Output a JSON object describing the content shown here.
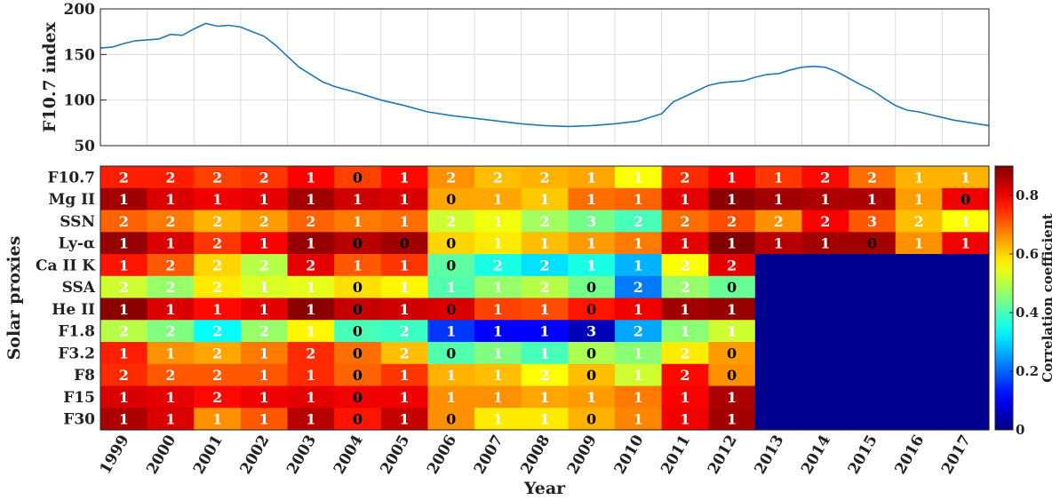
{
  "chart_data": [
    {
      "type": "line",
      "ylabel": "F10.7 index",
      "ylim": [
        50,
        200
      ],
      "yticks": [
        50,
        100,
        150,
        200
      ],
      "xlim": [
        1999,
        2018
      ],
      "grid": true,
      "color": "#1f77b4",
      "series": [
        {
          "x": [
            1999.0,
            1999.25,
            1999.5,
            1999.75,
            2000.0,
            2000.25,
            2000.5,
            2000.75,
            2001.0,
            2001.25,
            2001.5,
            2001.75,
            2002.0,
            2002.25,
            2002.5,
            2002.75,
            2003.0,
            2003.25,
            2003.5,
            2003.75,
            2004.0,
            2004.5,
            2005.0,
            2005.5,
            2006.0,
            2006.5,
            2007.0,
            2007.5,
            2008.0,
            2008.5,
            2009.0,
            2009.5,
            2010.0,
            2010.5,
            2011.0,
            2011.25,
            2011.5,
            2011.75,
            2012.0,
            2012.25,
            2012.5,
            2012.75,
            2013.0,
            2013.25,
            2013.5,
            2013.75,
            2014.0,
            2014.25,
            2014.5,
            2014.75,
            2015.0,
            2015.25,
            2015.5,
            2015.75,
            2016.0,
            2016.25,
            2016.5,
            2016.75,
            2017.0,
            2017.25,
            2017.5,
            2017.75,
            2018.0
          ],
          "y": [
            157,
            158,
            162,
            165,
            166,
            167,
            172,
            171,
            178,
            184,
            181,
            182,
            180,
            175,
            170,
            160,
            148,
            136,
            128,
            120,
            115,
            108,
            100,
            94,
            87,
            83,
            80,
            77,
            74,
            72,
            71,
            72,
            74,
            77,
            85,
            98,
            104,
            110,
            116,
            119,
            120,
            121,
            125,
            128,
            129,
            133,
            136,
            137,
            136,
            131,
            124,
            117,
            111,
            102,
            94,
            89,
            87,
            84,
            81,
            78,
            76,
            74,
            72
          ]
        }
      ]
    },
    {
      "type": "heatmap",
      "xlabel": "Year",
      "ylabel": "Solar proxies",
      "x": [
        "1999",
        "2000",
        "2001",
        "2002",
        "2003",
        "2004",
        "2005",
        "2006",
        "2007",
        "2008",
        "2009",
        "2010",
        "2011",
        "2012",
        "2013",
        "2014",
        "2015",
        "2016",
        "2017"
      ],
      "y": [
        "F10.7",
        "Mg II",
        "SSN",
        "Ly-α",
        "Ca II K",
        "SSA",
        "He II",
        "F1.8",
        "F3.2",
        "F8",
        "F15",
        "F30"
      ],
      "colorbar": {
        "label": "Correlation coefficient",
        "range": [
          0,
          0.9
        ],
        "ticks": [
          0,
          0.2,
          0.4,
          0.6,
          0.8
        ]
      },
      "colormap": "jet",
      "missing_color": "#00008f",
      "values": [
        [
          0.76,
          0.76,
          0.73,
          0.74,
          0.79,
          0.73,
          0.78,
          0.66,
          0.62,
          0.63,
          0.64,
          0.56,
          0.75,
          0.79,
          0.74,
          0.78,
          0.69,
          0.63,
          0.63
        ],
        [
          0.87,
          0.82,
          0.8,
          0.81,
          0.87,
          0.83,
          0.82,
          0.64,
          0.64,
          0.61,
          0.69,
          0.7,
          0.81,
          0.89,
          0.87,
          0.86,
          0.86,
          0.65,
          0.8
        ],
        [
          0.7,
          0.68,
          0.63,
          0.65,
          0.7,
          0.68,
          0.69,
          0.52,
          0.55,
          0.48,
          0.44,
          0.4,
          0.69,
          0.72,
          0.66,
          0.79,
          0.71,
          0.62,
          0.56
        ],
        [
          0.88,
          0.82,
          0.74,
          0.79,
          0.88,
          0.85,
          0.87,
          0.6,
          0.58,
          0.62,
          0.65,
          0.68,
          0.81,
          0.9,
          0.85,
          0.87,
          0.87,
          0.66,
          0.8
        ],
        [
          0.77,
          0.71,
          0.6,
          0.5,
          0.81,
          0.71,
          0.74,
          0.42,
          0.36,
          0.31,
          0.36,
          0.27,
          0.56,
          0.81,
          null,
          null,
          null,
          null,
          null
        ],
        [
          0.52,
          0.47,
          0.58,
          0.53,
          0.54,
          0.59,
          0.57,
          0.41,
          0.47,
          0.5,
          0.44,
          0.22,
          0.47,
          0.43,
          null,
          null,
          null,
          null,
          null
        ],
        [
          0.89,
          0.82,
          0.78,
          0.81,
          0.89,
          0.84,
          0.83,
          0.82,
          0.73,
          0.72,
          0.77,
          0.8,
          0.87,
          0.88,
          null,
          null,
          null,
          null,
          null
        ],
        [
          0.5,
          0.45,
          0.34,
          0.47,
          0.57,
          0.4,
          0.39,
          0.16,
          0.11,
          0.11,
          0.05,
          0.26,
          0.46,
          0.52,
          null,
          null,
          null,
          null,
          null
        ],
        [
          0.76,
          0.66,
          0.64,
          0.68,
          0.75,
          0.69,
          0.62,
          0.41,
          0.45,
          0.4,
          0.49,
          0.46,
          0.58,
          0.65,
          null,
          null,
          null,
          null,
          null
        ],
        [
          0.75,
          0.71,
          0.71,
          0.71,
          0.75,
          0.7,
          0.74,
          0.63,
          0.62,
          0.56,
          0.62,
          0.52,
          0.78,
          0.66,
          null,
          null,
          null,
          null,
          null
        ],
        [
          0.82,
          0.81,
          0.78,
          0.8,
          0.81,
          0.8,
          0.8,
          0.66,
          0.66,
          0.64,
          0.65,
          0.68,
          0.79,
          0.86,
          null,
          null,
          null,
          null,
          null
        ],
        [
          0.86,
          0.82,
          0.66,
          0.71,
          0.85,
          0.77,
          0.84,
          0.66,
          0.58,
          0.58,
          0.63,
          0.67,
          0.8,
          0.87,
          null,
          null,
          null,
          null,
          null
        ]
      ],
      "labels": [
        [
          "2",
          "2",
          "2",
          "2",
          "1",
          "0",
          "1",
          "2",
          "2",
          "2",
          "1",
          "1",
          "2",
          "1",
          "1",
          "2",
          "2",
          "1",
          "1"
        ],
        [
          "1",
          "1",
          "1",
          "1",
          "1",
          "1",
          "1",
          "0",
          "1",
          "1",
          "1",
          "1",
          "1",
          "1",
          "1",
          "1",
          "1",
          "1",
          "0"
        ],
        [
          "2",
          "2",
          "2",
          "2",
          "2",
          "1",
          "1",
          "2",
          "1",
          "2",
          "3",
          "2",
          "2",
          "2",
          "2",
          "2",
          "3",
          "2",
          "1"
        ],
        [
          "1",
          "1",
          "2",
          "1",
          "1",
          "0",
          "0",
          "0",
          "1",
          "1",
          "1",
          "1",
          "1",
          "1",
          "1",
          "1",
          "0",
          "1",
          "1"
        ],
        [
          "1",
          "2",
          "2",
          "2",
          "2",
          "1",
          "1",
          "0",
          "2",
          "2",
          "1",
          "1",
          "2",
          "2",
          "",
          "",
          "",
          "",
          ""
        ],
        [
          "2",
          "2",
          "2",
          "1",
          "1",
          "0",
          "1",
          "1",
          "1",
          "2",
          "0",
          "2",
          "2",
          "0",
          "",
          "",
          "",
          "",
          ""
        ],
        [
          "1",
          "1",
          "1",
          "1",
          "1",
          "0",
          "1",
          "0",
          "1",
          "1",
          "0",
          "1",
          "1",
          "1",
          "",
          "",
          "",
          "",
          ""
        ],
        [
          "2",
          "2",
          "2",
          "2",
          "1",
          "0",
          "2",
          "1",
          "1",
          "1",
          "3",
          "2",
          "1",
          "1",
          "",
          "",
          "",
          "",
          ""
        ],
        [
          "1",
          "1",
          "2",
          "1",
          "2",
          "0",
          "2",
          "0",
          "1",
          "1",
          "0",
          "1",
          "2",
          "0",
          "",
          "",
          "",
          "",
          ""
        ],
        [
          "2",
          "2",
          "2",
          "1",
          "1",
          "0",
          "1",
          "1",
          "1",
          "2",
          "0",
          "1",
          "2",
          "0",
          "",
          "",
          "",
          "",
          ""
        ],
        [
          "1",
          "1",
          "2",
          "1",
          "1",
          "0",
          "1",
          "1",
          "1",
          "1",
          "1",
          "1",
          "1",
          "1",
          "",
          "",
          "",
          "",
          ""
        ],
        [
          "1",
          "1",
          "1",
          "1",
          "1",
          "0",
          "1",
          "0",
          "1",
          "1",
          "0",
          "1",
          "1",
          "1",
          "",
          "",
          "",
          "",
          ""
        ]
      ],
      "label_colors": [
        [
          "w",
          "w",
          "w",
          "w",
          "w",
          "k",
          "w",
          "w",
          "w",
          "w",
          "w",
          "w",
          "w",
          "w",
          "w",
          "w",
          "w",
          "w",
          "w"
        ],
        [
          "w",
          "w",
          "w",
          "w",
          "w",
          "w",
          "w",
          "k",
          "w",
          "w",
          "w",
          "w",
          "w",
          "w",
          "w",
          "w",
          "w",
          "w",
          "k"
        ],
        [
          "w",
          "w",
          "w",
          "w",
          "w",
          "w",
          "w",
          "w",
          "w",
          "w",
          "w",
          "w",
          "w",
          "w",
          "w",
          "w",
          "w",
          "w",
          "w"
        ],
        [
          "w",
          "w",
          "w",
          "w",
          "w",
          "k",
          "k",
          "k",
          "w",
          "w",
          "w",
          "w",
          "w",
          "w",
          "w",
          "w",
          "k",
          "w",
          "w"
        ],
        [
          "w",
          "w",
          "w",
          "w",
          "w",
          "w",
          "w",
          "k",
          "w",
          "w",
          "w",
          "w",
          "w",
          "w",
          "",
          "",
          "",
          "",
          ""
        ],
        [
          "w",
          "w",
          "w",
          "w",
          "w",
          "k",
          "w",
          "w",
          "w",
          "w",
          "k",
          "w",
          "w",
          "k",
          "",
          "",
          "",
          "",
          ""
        ],
        [
          "w",
          "w",
          "w",
          "w",
          "w",
          "k",
          "w",
          "k",
          "w",
          "w",
          "k",
          "w",
          "w",
          "w",
          "",
          "",
          "",
          "",
          ""
        ],
        [
          "w",
          "w",
          "w",
          "w",
          "w",
          "k",
          "w",
          "w",
          "w",
          "w",
          "w",
          "w",
          "w",
          "w",
          "",
          "",
          "",
          "",
          ""
        ],
        [
          "w",
          "w",
          "w",
          "w",
          "w",
          "k",
          "w",
          "k",
          "w",
          "w",
          "k",
          "w",
          "w",
          "k",
          "",
          "",
          "",
          "",
          ""
        ],
        [
          "w",
          "w",
          "w",
          "w",
          "w",
          "k",
          "w",
          "w",
          "w",
          "w",
          "k",
          "w",
          "w",
          "k",
          "",
          "",
          "",
          "",
          ""
        ],
        [
          "w",
          "w",
          "w",
          "w",
          "w",
          "k",
          "w",
          "w",
          "w",
          "w",
          "w",
          "w",
          "w",
          "w",
          "",
          "",
          "",
          "",
          ""
        ],
        [
          "w",
          "w",
          "w",
          "w",
          "w",
          "k",
          "w",
          "k",
          "w",
          "w",
          "k",
          "w",
          "w",
          "w",
          "",
          "",
          "",
          "",
          ""
        ]
      ]
    }
  ]
}
